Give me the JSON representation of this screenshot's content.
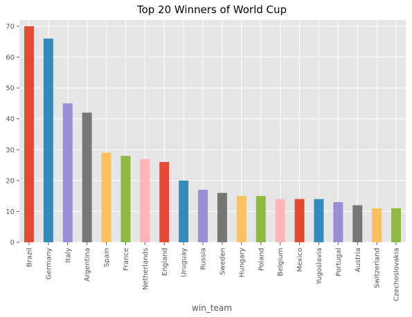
{
  "chart_data": {
    "type": "bar",
    "title": "Top 20 Winners of World Cup",
    "xlabel": "win_team",
    "ylabel": "",
    "ylim": [
      0,
      72
    ],
    "yticks": [
      0,
      10,
      20,
      30,
      40,
      50,
      60,
      70
    ],
    "grid": true,
    "categories": [
      "Brazil",
      "Germany",
      "Italy",
      "Argentina",
      "Spain",
      "France",
      "Netherlands",
      "England",
      "Uruguay",
      "Russia",
      "Sweden",
      "Hungary",
      "Poland",
      "Belgium",
      "Mexico",
      "Yugoslavia",
      "Portugal",
      "Austria",
      "Switzerland",
      "Czechoslovakia"
    ],
    "values": [
      70,
      66,
      45,
      42,
      29,
      28,
      27,
      26,
      20,
      17,
      16,
      15,
      15,
      14,
      14,
      14,
      13,
      12,
      11,
      11
    ],
    "colors": [
      "#E24A33",
      "#348ABD",
      "#988ED5",
      "#777777",
      "#FBC15E",
      "#8EBA42",
      "#FFB5B8"
    ],
    "background": "#E5E5E5",
    "grid_color": "#FFFFFF"
  }
}
